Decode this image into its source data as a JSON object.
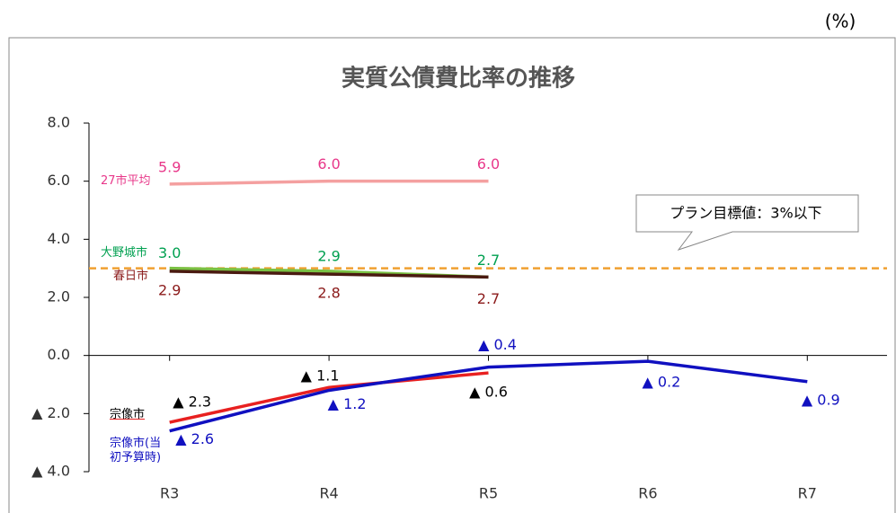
{
  "chart_data": {
    "type": "line",
    "title": "実質公債費比率の推移",
    "unit": "(%)",
    "categories": [
      "R3",
      "R4",
      "R5",
      "R6",
      "R7"
    ],
    "ylim": [
      -4,
      8
    ],
    "yticks": [
      {
        "value": 8,
        "label": "8.0"
      },
      {
        "value": 6,
        "label": "6.0"
      },
      {
        "value": 4,
        "label": "4.0"
      },
      {
        "value": 2,
        "label": "2.0"
      },
      {
        "value": 0,
        "label": "0.0"
      },
      {
        "value": -2,
        "label": "▲ 2.0"
      },
      {
        "value": -4,
        "label": "▲ 4.0"
      }
    ],
    "target": {
      "label": "プラン目標値：3%以下",
      "value": 3,
      "color": "#f0a030"
    },
    "series": [
      {
        "name": "27市平均",
        "color": "#f4a0a0",
        "label_color": "#e8388a",
        "values": [
          5.9,
          6.0,
          6.0,
          null,
          null
        ],
        "value_labels": [
          "5.9",
          "6.0",
          "6.0",
          null,
          null
        ]
      },
      {
        "name": "大野城市",
        "color": "#7ac143",
        "label_color": "#00a050",
        "values": [
          3.0,
          2.9,
          2.7,
          null,
          null
        ],
        "value_labels": [
          "3.0",
          "2.9",
          "2.7",
          null,
          null
        ]
      },
      {
        "name": "春日市",
        "color": "#4a1a10",
        "label_color": "#8b1a1a",
        "values": [
          2.9,
          2.8,
          2.7,
          null,
          null
        ],
        "value_labels": [
          "2.9",
          "2.8",
          "2.7",
          null,
          null
        ]
      },
      {
        "name": "宗像市",
        "color": "#e82020",
        "label_color": "#000000",
        "values": [
          -2.3,
          -1.1,
          -0.6,
          null,
          null
        ],
        "value_labels": [
          "▲ 2.3",
          "▲ 1.1",
          "▲ 0.6",
          null,
          null
        ]
      },
      {
        "name": "宗像市(当初予算時)",
        "color": "#1010c0",
        "label_color": "#1010c0",
        "values": [
          -2.6,
          -1.2,
          -0.4,
          -0.2,
          -0.9
        ],
        "value_labels": [
          "▲ 2.6",
          "▲ 1.2",
          "▲ 0.4",
          "▲ 0.2",
          "▲ 0.9"
        ]
      }
    ]
  }
}
